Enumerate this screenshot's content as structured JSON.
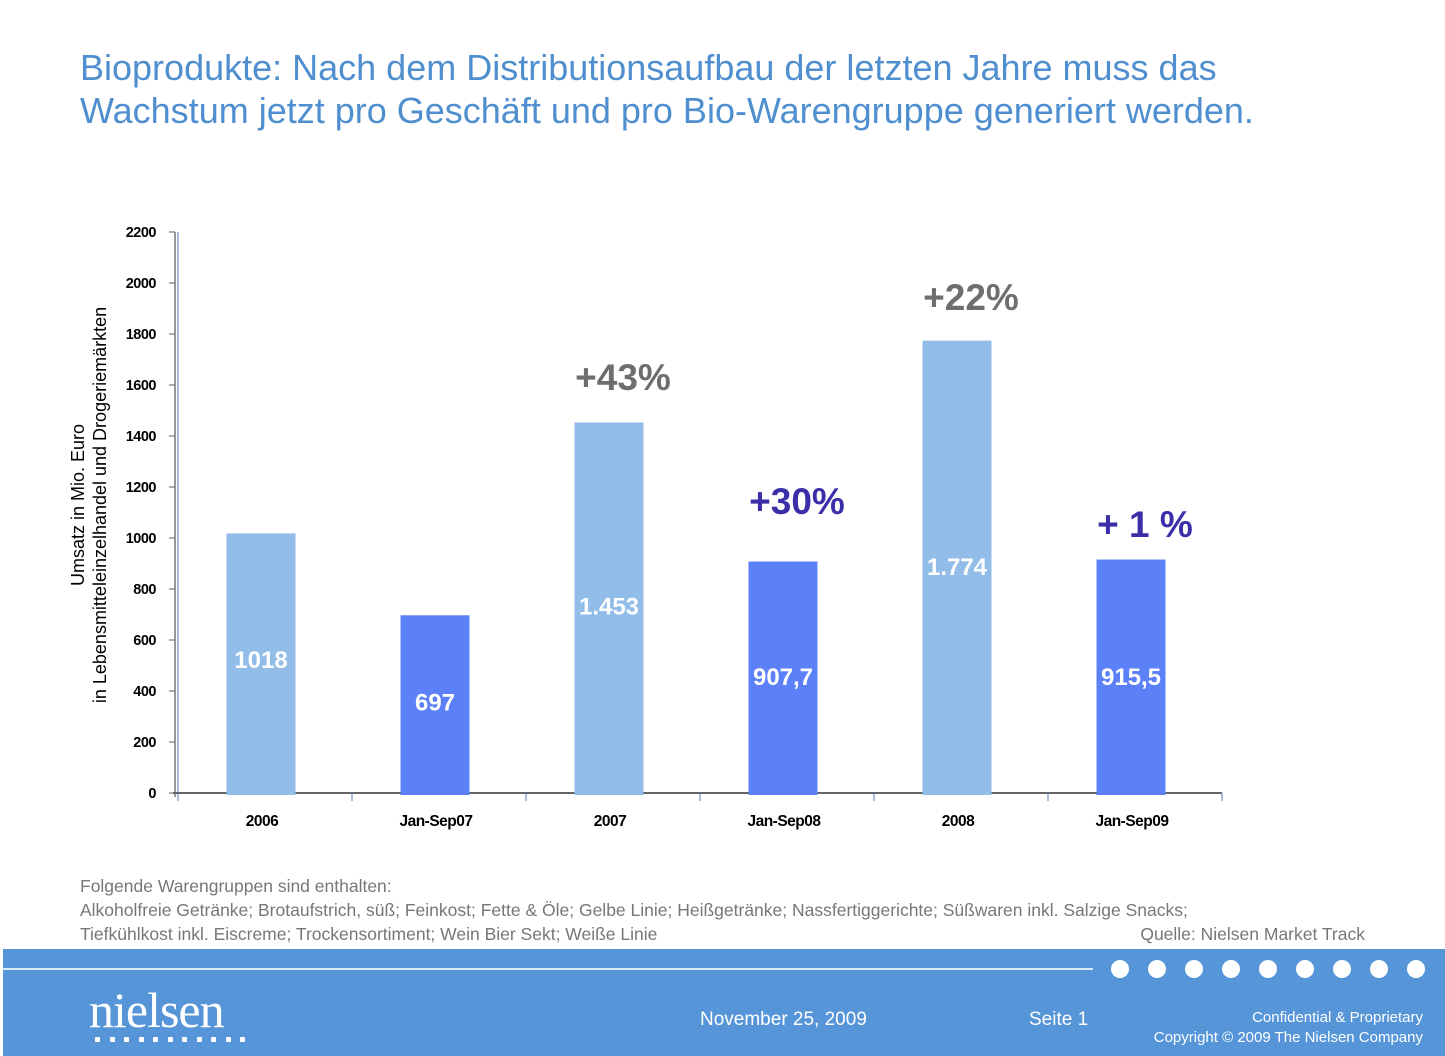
{
  "title": {
    "line1": "Bioprodukte: Nach dem Distributionsaufbau der letzten Jahre muss das",
    "line2": "Wachstum jetzt pro Geschäft und pro Bio-Warengruppe generiert werden."
  },
  "chart_data": {
    "type": "bar",
    "title": "",
    "xlabel": "",
    "ylabel": "Umsatz in Mio. Euro\nin Lebensmitteleinzelhandel und Drogeriemärkten",
    "ylabel_lines": [
      "Umsatz in Mio. Euro",
      "in Lebensmitteleinzelhandel und Drogeriemärkten"
    ],
    "ylim": [
      0,
      2200
    ],
    "yticks": [
      0,
      200,
      400,
      600,
      800,
      1000,
      1200,
      1400,
      1600,
      1800,
      2000,
      2200
    ],
    "ytick_labels": [
      "0",
      "200",
      "400",
      "600",
      "800",
      "1000",
      "1200",
      "1400",
      "1600",
      "1800",
      "2000",
      "2200"
    ],
    "grid": false,
    "legend": "none",
    "categories": [
      "2006",
      "Jan-Sep07",
      "2007",
      "Jan-Sep08",
      "2008",
      "Jan-Sep09"
    ],
    "values": [
      1018,
      697,
      1453,
      907.7,
      1774,
      915.5
    ],
    "value_labels": [
      "1018",
      "697",
      "1.453",
      "907,7",
      "1.774",
      "915,5"
    ],
    "bar_colors": [
      "#92bde9",
      "#5b80f7",
      "#92bde9",
      "#5b80f7",
      "#92bde9",
      "#5b80f7"
    ],
    "annotations": [
      {
        "category": "2007",
        "text": "+43%",
        "color": "#6e6e6e"
      },
      {
        "category": "Jan-Sep08",
        "text": "+30%",
        "color": "#3a2fa8"
      },
      {
        "category": "2008",
        "text": "+22%",
        "color": "#6e6e6e"
      },
      {
        "category": "Jan-Sep09",
        "text": "+ 1 %",
        "color": "#3a2fa8"
      }
    ]
  },
  "notes": {
    "heading": "Folgende Warengruppen sind enthalten:",
    "line1": "Alkoholfreie Getränke; Brotaufstrich, süß; Feinkost; Fette & Öle; Gelbe Linie; Heißgetränke; Nassfertiggerichte; Süßwaren inkl. Salzige Snacks;",
    "line2": "Tiefkühlkost inkl. Eiscreme; Trockensortiment; Wein Bier Sekt; Weiße Linie",
    "source": "Quelle: Nielsen Market Track"
  },
  "footer": {
    "logo": "nielsen",
    "date": "November 25, 2009",
    "page": "Seite 1",
    "confidential": "Confidential & Proprietary",
    "copyright": "Copyright © 2009 The Nielsen Company",
    "background_color": "#5595d8"
  }
}
